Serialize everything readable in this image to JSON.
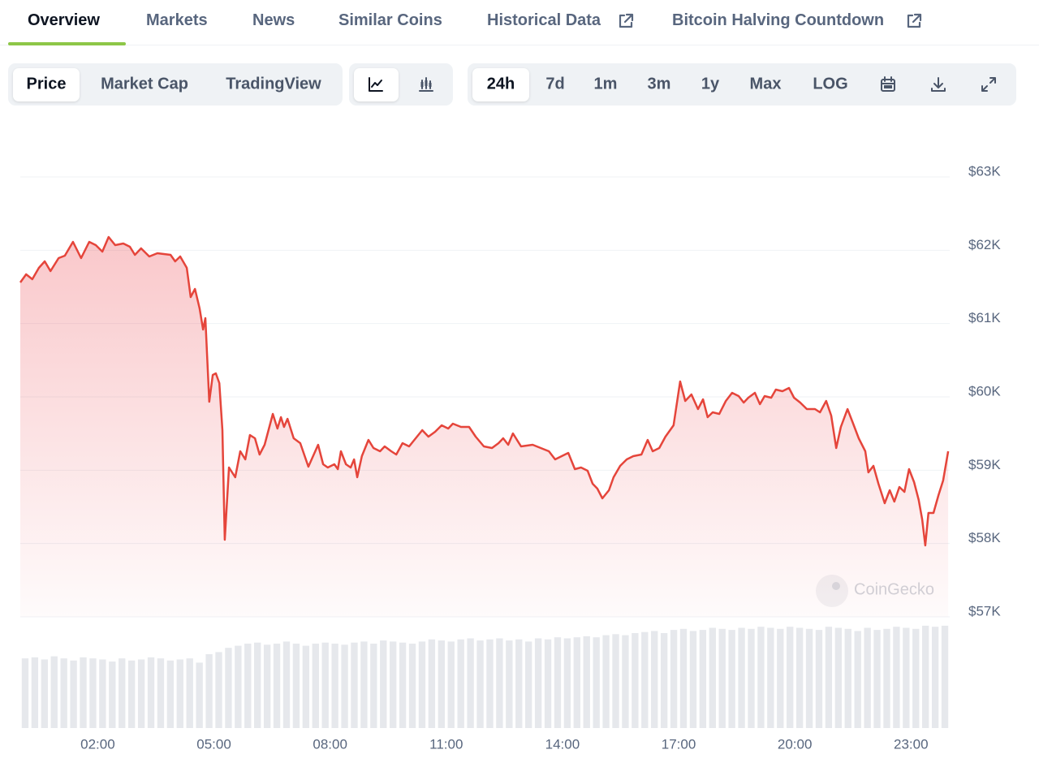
{
  "tabs": [
    "Overview",
    "Markets",
    "News",
    "Similar Coins",
    "Historical Data",
    "Bitcoin Halving Countdown"
  ],
  "chart_modes": [
    "Price",
    "Market Cap",
    "TradingView"
  ],
  "ranges": [
    "24h",
    "7d",
    "1m",
    "3m",
    "1y",
    "Max",
    "LOG"
  ],
  "chart_data": {
    "type": "line",
    "color": "#e5453b",
    "grid": true,
    "watermark": "CoinGecko",
    "xlim": [
      0,
      24
    ],
    "xticks": [
      {
        "value": 2,
        "label": "02:00"
      },
      {
        "value": 5,
        "label": "05:00"
      },
      {
        "value": 8,
        "label": "08:00"
      },
      {
        "value": 11,
        "label": "11:00"
      },
      {
        "value": 14,
        "label": "14:00"
      },
      {
        "value": 17,
        "label": "17:00"
      },
      {
        "value": 20,
        "label": "20:00"
      },
      {
        "value": 23,
        "label": "23:00"
      }
    ],
    "ylim": [
      57000,
      63000
    ],
    "yticks": [
      {
        "value": 57000,
        "label": "$57K"
      },
      {
        "value": 58000,
        "label": "$58K"
      },
      {
        "value": 59000,
        "label": "$59K"
      },
      {
        "value": 60000,
        "label": "$60K"
      },
      {
        "value": 61000,
        "label": "$61K"
      },
      {
        "value": 62000,
        "label": "$62K"
      },
      {
        "value": 63000,
        "label": "$63K"
      }
    ],
    "x": [
      0,
      0.15,
      0.31,
      0.48,
      0.63,
      0.78,
      0.99,
      1.15,
      1.36,
      1.57,
      1.78,
      1.95,
      2.12,
      2.28,
      2.45,
      2.66,
      2.83,
      2.96,
      3.12,
      3.33,
      3.54,
      3.88,
      4.0,
      4.13,
      4.3,
      4.4,
      4.51,
      4.63,
      4.72,
      4.78,
      4.88,
      4.97,
      5.05,
      5.14,
      5.22,
      5.28,
      5.39,
      5.55,
      5.68,
      5.81,
      5.93,
      6.06,
      6.18,
      6.31,
      6.52,
      6.64,
      6.73,
      6.81,
      6.9,
      7.06,
      7.23,
      7.44,
      7.69,
      7.82,
      7.94,
      8.11,
      8.2,
      8.28,
      8.41,
      8.53,
      8.62,
      8.7,
      8.82,
      8.99,
      9.12,
      9.29,
      9.41,
      9.58,
      9.71,
      9.87,
      10.04,
      10.21,
      10.38,
      10.54,
      10.71,
      10.88,
      11.05,
      11.17,
      11.38,
      11.59,
      11.76,
      11.97,
      12.18,
      12.35,
      12.47,
      12.6,
      12.72,
      12.93,
      13.23,
      13.44,
      13.65,
      13.81,
      13.98,
      14.15,
      14.32,
      14.48,
      14.65,
      14.78,
      14.9,
      15.03,
      15.2,
      15.32,
      15.49,
      15.66,
      15.83,
      16.04,
      16.2,
      16.33,
      16.5,
      16.66,
      16.87,
      17.04,
      17.17,
      17.33,
      17.5,
      17.63,
      17.75,
      17.88,
      18.05,
      18.22,
      18.38,
      18.55,
      18.68,
      18.8,
      18.97,
      19.1,
      19.22,
      19.39,
      19.51,
      19.68,
      19.85,
      19.98,
      20.14,
      20.31,
      20.52,
      20.65,
      20.81,
      20.94,
      21.07,
      21.19,
      21.36,
      21.49,
      21.65,
      21.82,
      21.9,
      22.03,
      22.16,
      22.32,
      22.45,
      22.57,
      22.7,
      22.83,
      22.95,
      23.08,
      23.2,
      23.29,
      23.37,
      23.45,
      23.58,
      23.71,
      23.83,
      23.96
    ],
    "values": [
      61561,
      61672,
      61605,
      61760,
      61849,
      61716,
      61893,
      61926,
      62114,
      61893,
      62114,
      62070,
      61982,
      62181,
      62070,
      62092,
      62048,
      61937,
      62026,
      61915,
      61959,
      61937,
      61849,
      61915,
      61760,
      61362,
      61472,
      61207,
      60919,
      61074,
      59934,
      60299,
      60321,
      60188,
      59546,
      58052,
      59037,
      58904,
      59258,
      59148,
      59480,
      59435,
      59214,
      59347,
      59768,
      59568,
      59723,
      59590,
      59701,
      59435,
      59369,
      59048,
      59347,
      59081,
      59037,
      59081,
      59015,
      59258,
      59081,
      59037,
      59148,
      58904,
      59192,
      59413,
      59303,
      59258,
      59325,
      59258,
      59214,
      59369,
      59325,
      59435,
      59546,
      59458,
      59524,
      59613,
      59568,
      59635,
      59590,
      59590,
      59458,
      59325,
      59303,
      59369,
      59435,
      59347,
      59502,
      59325,
      59347,
      59303,
      59258,
      59148,
      59192,
      59236,
      59015,
      59037,
      58993,
      58815,
      58749,
      58616,
      58727,
      58904,
      59059,
      59148,
      59192,
      59214,
      59413,
      59258,
      59303,
      59458,
      59613,
      60210,
      59945,
      60033,
      59834,
      59967,
      59723,
      59790,
      59768,
      59945,
      60055,
      60011,
      59922,
      59989,
      60055,
      59900,
      60011,
      59989,
      60100,
      60077,
      60122,
      59989,
      59922,
      59834,
      59834,
      59790,
      59945,
      59745,
      59303,
      59590,
      59834,
      59657,
      59435,
      59258,
      58970,
      59059,
      58815,
      58550,
      58727,
      58572,
      58771,
      58705,
      59015,
      58838,
      58594,
      58328,
      57974,
      58417,
      58417,
      58661,
      58860,
      59258
    ],
    "volume": {
      "color": "#e6e8ec",
      "ylim": [
        0,
        100
      ],
      "values": [
        66,
        67,
        65,
        68,
        66,
        64,
        67,
        66,
        65,
        63,
        66,
        64,
        65,
        67,
        66,
        64,
        65,
        66,
        62,
        70,
        72,
        76,
        78,
        80,
        81,
        79,
        80,
        82,
        80,
        78,
        80,
        81,
        80,
        79,
        81,
        82,
        80,
        83,
        82,
        81,
        80,
        82,
        84,
        83,
        82,
        84,
        85,
        83,
        84,
        85,
        83,
        84,
        82,
        85,
        84,
        86,
        85,
        86,
        87,
        86,
        88,
        89,
        88,
        90,
        91,
        92,
        90,
        93,
        94,
        92,
        93,
        95,
        94,
        93,
        95,
        94,
        96,
        95,
        94,
        96,
        95,
        94,
        93,
        96,
        95,
        94,
        92,
        95,
        93,
        94,
        96,
        95,
        94,
        97,
        96,
        97
      ]
    }
  }
}
